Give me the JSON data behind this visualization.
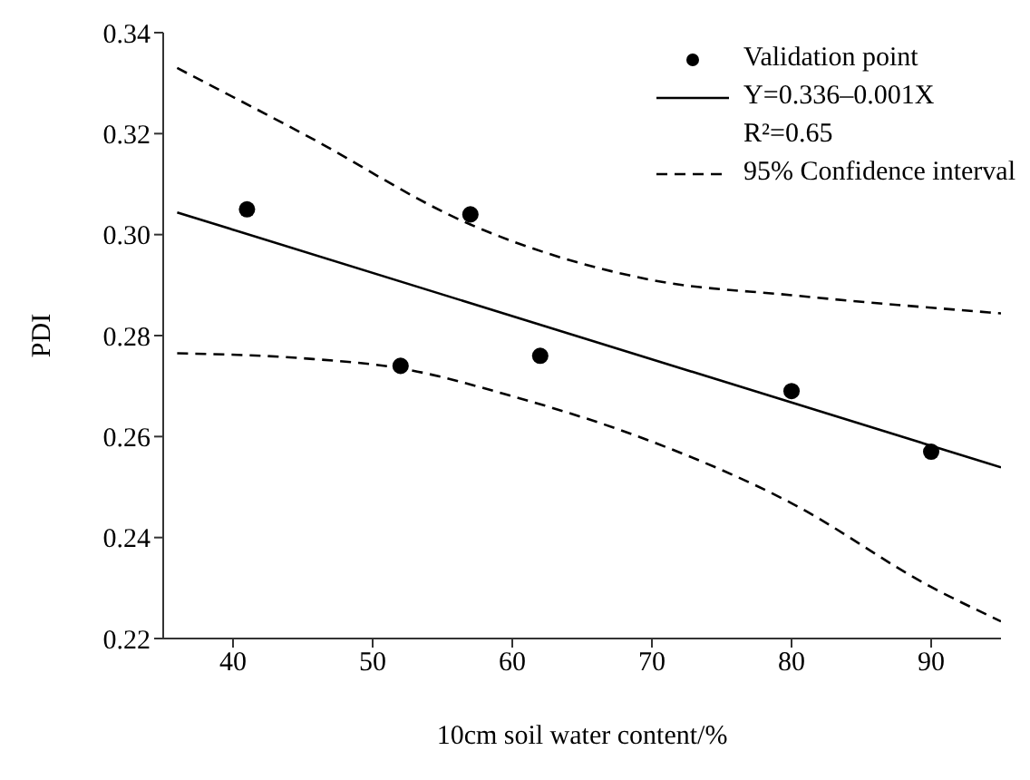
{
  "chart_data": {
    "type": "line",
    "xlabel": "10cm soil water content/%",
    "ylabel": "PDI",
    "xlim": [
      35,
      95
    ],
    "xticks": [
      40,
      50,
      60,
      70,
      80,
      90
    ],
    "ylim": [
      0.22,
      0.34
    ],
    "yticks": [
      {
        "value": 0.22,
        "label": "0.22"
      },
      {
        "value": 0.24,
        "label": "0.24"
      },
      {
        "value": 0.26,
        "label": "0.26"
      },
      {
        "value": 0.28,
        "label": "0.28"
      },
      {
        "value": 0.3,
        "label": "0.30"
      },
      {
        "value": 0.32,
        "label": "0.32"
      },
      {
        "value": 0.34,
        "label": "0.34"
      }
    ],
    "grid": false,
    "legend": "top right",
    "annotations": [
      "R²=0.65"
    ],
    "series": [
      {
        "name": "Validation point",
        "type": "scatter",
        "marker": "circle",
        "color": "#000000",
        "x": [
          41,
          52,
          57,
          62,
          80,
          90
        ],
        "values": [
          0.305,
          0.274,
          0.304,
          0.276,
          0.269,
          0.257
        ]
      },
      {
        "name": "Y=0.336–0.001X",
        "marker": "none",
        "line_style": "solid",
        "color": "#000000",
        "x": [
          36,
          95
        ],
        "values": [
          0.3044,
          0.2539
        ]
      },
      {
        "name": "95% Confidence interval",
        "marker": "none",
        "line_style": "dashed",
        "color": "#000000",
        "x": [
          36,
          45,
          57,
          70,
          80,
          95
        ],
        "values": [
          0.333,
          0.32,
          0.302,
          0.291,
          0.288,
          0.2844
        ]
      },
      {
        "marker": "none",
        "line_style": "dashed",
        "color": "#000000",
        "x": [
          36,
          45,
          52,
          60,
          70,
          80,
          90,
          95
        ],
        "values": [
          0.2765,
          0.2755,
          0.2735,
          0.268,
          0.259,
          0.2468,
          0.2302,
          0.2234
        ]
      }
    ]
  }
}
